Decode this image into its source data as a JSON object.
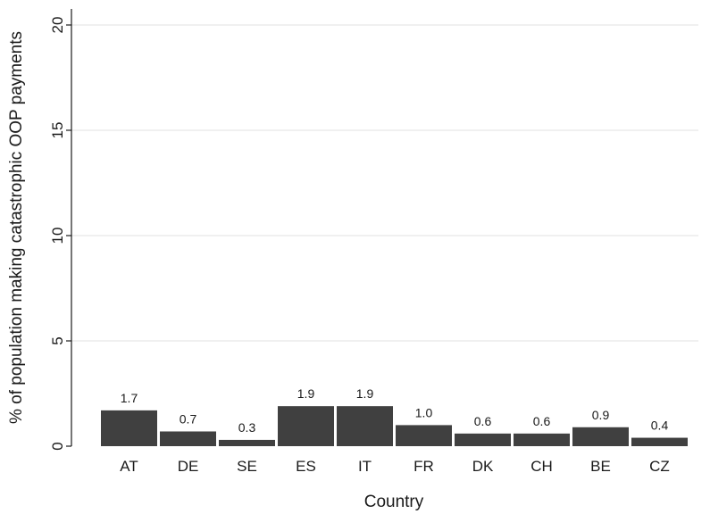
{
  "chart_data": {
    "type": "bar",
    "title": "",
    "xlabel": "Country",
    "ylabel": "% of population making catastrophic OOP payments",
    "categories": [
      "AT",
      "DE",
      "SE",
      "ES",
      "IT",
      "FR",
      "DK",
      "CH",
      "BE",
      "CZ"
    ],
    "values": [
      1.7,
      0.7,
      0.3,
      1.9,
      1.9,
      1.0,
      0.6,
      0.6,
      0.9,
      0.4
    ],
    "data_labels": [
      "1.7",
      "0.7",
      "0.3",
      "1.9",
      "1.9",
      "1.0",
      "0.6",
      "0.6",
      "0.9",
      "0.4"
    ],
    "ylim": [
      0,
      20
    ],
    "yticks": [
      0,
      5,
      10,
      15,
      20
    ],
    "grid": true,
    "legend": "none",
    "bar_color": "#404040",
    "grid_color": "#e6e6e6"
  }
}
